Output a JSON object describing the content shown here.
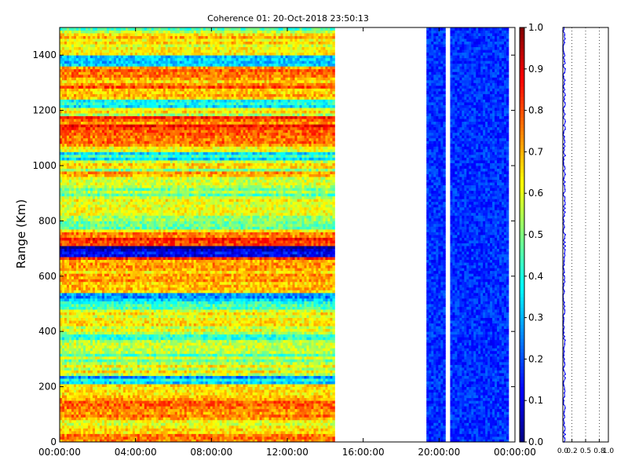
{
  "chart_data": [
    {
      "type": "heatmap",
      "name": "coherence-map",
      "title": "Coherence 01: 20-Oct-2018 23:50:13",
      "ylabel": "Range (Km)",
      "xlabel": "",
      "xlim": [
        "00:00:00",
        "24:00:00"
      ],
      "ylim": [
        0,
        1500
      ],
      "x_ticks": [
        "00:00:00",
        "04:00:00",
        "08:00:00",
        "12:00:00",
        "16:00:00",
        "20:00:00",
        "00:00:00"
      ],
      "y_ticks": [
        0,
        200,
        400,
        600,
        800,
        1000,
        1200,
        1400
      ],
      "colormap": "jet",
      "clim": [
        0,
        1
      ],
      "grid": false,
      "data_segments": [
        {
          "start": "00:00:00",
          "end": "14:30:00",
          "level": "high"
        },
        {
          "start": "19:20:00",
          "end": "20:20:00",
          "level": "low"
        },
        {
          "start": "20:35:00",
          "end": "23:40:00",
          "level": "low"
        }
      ],
      "range_profile": [
        {
          "range": 30,
          "value": 0.68
        },
        {
          "range": 50,
          "value": 0.62
        },
        {
          "range": 100,
          "value": 0.7
        },
        {
          "range": 150,
          "value": 0.72
        },
        {
          "range": 200,
          "value": 0.7
        },
        {
          "range": 225,
          "value": 0.35
        },
        {
          "range": 250,
          "value": 0.58
        },
        {
          "range": 300,
          "value": 0.56
        },
        {
          "range": 320,
          "value": 0.5
        },
        {
          "range": 350,
          "value": 0.6
        },
        {
          "range": 380,
          "value": 0.48
        },
        {
          "range": 400,
          "value": 0.62
        },
        {
          "range": 450,
          "value": 0.66
        },
        {
          "range": 500,
          "value": 0.4
        },
        {
          "range": 520,
          "value": 0.3
        },
        {
          "range": 550,
          "value": 0.7
        },
        {
          "range": 600,
          "value": 0.72
        },
        {
          "range": 650,
          "value": 0.78
        },
        {
          "range": 690,
          "value": 0.05
        },
        {
          "range": 720,
          "value": 0.78
        },
        {
          "range": 750,
          "value": 0.72
        },
        {
          "range": 780,
          "value": 0.45
        },
        {
          "range": 800,
          "value": 0.55
        },
        {
          "range": 850,
          "value": 0.62
        },
        {
          "range": 900,
          "value": 0.5
        },
        {
          "range": 950,
          "value": 0.66
        },
        {
          "range": 1000,
          "value": 0.58
        },
        {
          "range": 1030,
          "value": 0.4
        },
        {
          "range": 1060,
          "value": 0.68
        },
        {
          "range": 1100,
          "value": 0.7
        },
        {
          "range": 1150,
          "value": 0.78
        },
        {
          "range": 1200,
          "value": 0.62
        },
        {
          "range": 1220,
          "value": 0.38
        },
        {
          "range": 1260,
          "value": 0.7
        },
        {
          "range": 1300,
          "value": 0.74
        },
        {
          "range": 1340,
          "value": 0.78
        },
        {
          "range": 1380,
          "value": 0.3
        },
        {
          "range": 1420,
          "value": 0.66
        },
        {
          "range": 1460,
          "value": 0.64
        },
        {
          "range": 1490,
          "value": 0.52
        }
      ]
    },
    {
      "type": "heatmap",
      "name": "colorbar",
      "ticks": [
        "0.0",
        "0.1",
        "0.2",
        "0.3",
        "0.4",
        "0.5",
        "0.6",
        "0.7",
        "0.8",
        "0.9",
        "1.0"
      ],
      "range": [
        0,
        1
      ],
      "colormap": "jet"
    },
    {
      "type": "line",
      "name": "coherence-profile",
      "xlim": [
        0,
        1
      ],
      "ylim": [
        0,
        1500
      ],
      "x_ticks": [
        "0.0",
        "0.2",
        "0.5",
        "0.8",
        "1.0"
      ],
      "grid": true,
      "line_color": "#0000ff",
      "series": [
        {
          "values_typical": 0.03
        }
      ]
    }
  ]
}
